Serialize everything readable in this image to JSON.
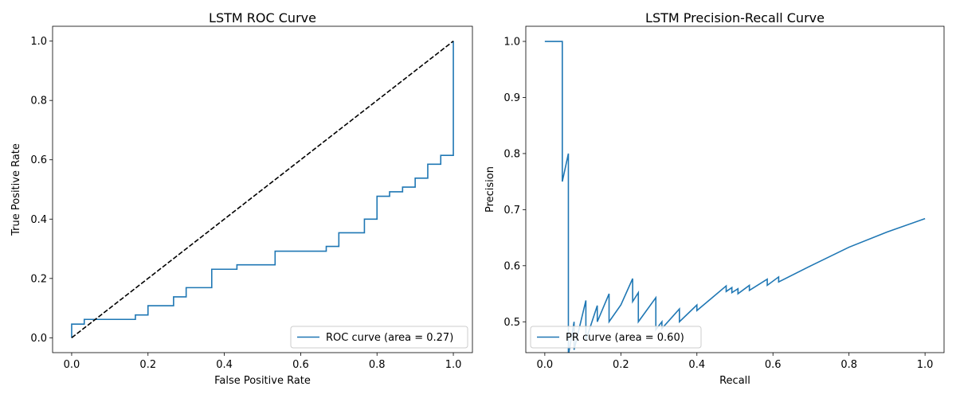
{
  "chart_data": [
    {
      "type": "line",
      "title": "LSTM ROC Curve",
      "xlabel": "False Positive Rate",
      "ylabel": "True Positive Rate",
      "xlim": [
        -0.05,
        1.05
      ],
      "ylim": [
        -0.05,
        1.05
      ],
      "xticks": [
        "0.0",
        "0.2",
        "0.4",
        "0.6",
        "0.8",
        "1.0"
      ],
      "yticks": [
        "0.0",
        "0.2",
        "0.4",
        "0.6",
        "0.8",
        "1.0"
      ],
      "legend_position": "lower-right",
      "series": [
        {
          "name": "ROC curve (area = 0.27)",
          "style": "step",
          "color": "#1f77b4",
          "points": [
            [
              0.0,
              0.0
            ],
            [
              0.0,
              0.046
            ],
            [
              0.033,
              0.046
            ],
            [
              0.033,
              0.062
            ],
            [
              0.167,
              0.062
            ],
            [
              0.167,
              0.077
            ],
            [
              0.2,
              0.077
            ],
            [
              0.2,
              0.108
            ],
            [
              0.267,
              0.108
            ],
            [
              0.267,
              0.138
            ],
            [
              0.3,
              0.138
            ],
            [
              0.3,
              0.169
            ],
            [
              0.367,
              0.169
            ],
            [
              0.367,
              0.231
            ],
            [
              0.433,
              0.231
            ],
            [
              0.433,
              0.246
            ],
            [
              0.533,
              0.246
            ],
            [
              0.533,
              0.292
            ],
            [
              0.667,
              0.292
            ],
            [
              0.667,
              0.308
            ],
            [
              0.7,
              0.308
            ],
            [
              0.7,
              0.354
            ],
            [
              0.767,
              0.354
            ],
            [
              0.767,
              0.4
            ],
            [
              0.8,
              0.4
            ],
            [
              0.8,
              0.477
            ],
            [
              0.833,
              0.477
            ],
            [
              0.833,
              0.492
            ],
            [
              0.867,
              0.492
            ],
            [
              0.867,
              0.508
            ],
            [
              0.9,
              0.508
            ],
            [
              0.9,
              0.538
            ],
            [
              0.933,
              0.538
            ],
            [
              0.933,
              0.585
            ],
            [
              0.967,
              0.585
            ],
            [
              0.967,
              0.615
            ],
            [
              1.0,
              0.615
            ],
            [
              1.0,
              1.0
            ]
          ]
        },
        {
          "name": "",
          "style": "dashed",
          "color": "#000000",
          "points": [
            [
              0.0,
              0.0
            ],
            [
              1.0,
              1.0
            ]
          ]
        }
      ]
    },
    {
      "type": "line",
      "title": "LSTM Precision-Recall Curve",
      "xlabel": "Recall",
      "ylabel": "Precision",
      "xlim": [
        -0.05,
        1.05
      ],
      "ylim": [
        0.445,
        1.027
      ],
      "xticks": [
        "0.0",
        "0.2",
        "0.4",
        "0.6",
        "0.8",
        "1.0"
      ],
      "yticks": [
        "0.5",
        "0.6",
        "0.7",
        "0.8",
        "0.9",
        "1.0"
      ],
      "legend_position": "lower-left",
      "series": [
        {
          "name": "PR curve (area = 0.60)",
          "color": "#1f77b4",
          "points": [
            [
              0.0,
              1.0
            ],
            [
              0.046,
              1.0
            ],
            [
              0.046,
              0.75
            ],
            [
              0.062,
              0.8
            ],
            [
              0.062,
              0.44
            ],
            [
              0.077,
              0.5
            ],
            [
              0.077,
              0.45
            ],
            [
              0.108,
              0.538
            ],
            [
              0.108,
              0.467
            ],
            [
              0.138,
              0.529
            ],
            [
              0.138,
              0.5
            ],
            [
              0.169,
              0.55
            ],
            [
              0.169,
              0.5
            ],
            [
              0.2,
              0.53
            ],
            [
              0.231,
              0.577
            ],
            [
              0.231,
              0.536
            ],
            [
              0.246,
              0.552
            ],
            [
              0.246,
              0.5
            ],
            [
              0.292,
              0.543
            ],
            [
              0.292,
              0.486
            ],
            [
              0.308,
              0.5
            ],
            [
              0.308,
              0.488
            ],
            [
              0.354,
              0.523
            ],
            [
              0.354,
              0.5
            ],
            [
              0.4,
              0.53
            ],
            [
              0.4,
              0.52
            ],
            [
              0.477,
              0.564
            ],
            [
              0.477,
              0.554
            ],
            [
              0.492,
              0.561
            ],
            [
              0.492,
              0.552
            ],
            [
              0.508,
              0.559
            ],
            [
              0.508,
              0.55
            ],
            [
              0.538,
              0.565
            ],
            [
              0.538,
              0.556
            ],
            [
              0.585,
              0.576
            ],
            [
              0.585,
              0.565
            ],
            [
              0.615,
              0.58
            ],
            [
              0.615,
              0.571
            ],
            [
              0.7,
              0.6
            ],
            [
              0.8,
              0.633
            ],
            [
              0.9,
              0.66
            ],
            [
              1.0,
              0.684
            ]
          ]
        }
      ]
    }
  ]
}
